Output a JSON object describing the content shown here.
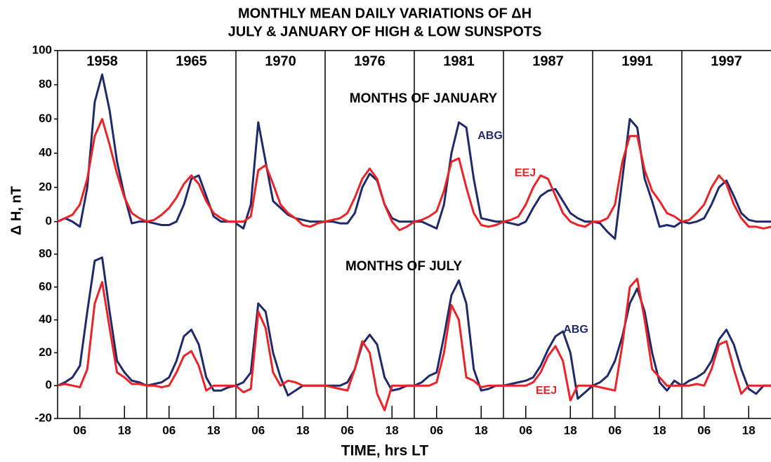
{
  "chart_data": {
    "type": "line",
    "title": "MONTHLY MEAN DAILY VARIATIONS OF ΔH",
    "subtitle": "JULY & JANUARY OF HIGH & LOW SUNSPOTS",
    "y_label": "Δ H, nT",
    "x_label": "TIME, hrs LT",
    "categories": [
      "1958",
      "1965",
      "1970",
      "1976",
      "1981",
      "1987",
      "1991",
      "1997"
    ],
    "x": [
      0,
      2,
      4,
      6,
      8,
      10,
      12,
      14,
      16,
      18,
      20,
      22,
      24
    ],
    "xlim": [
      0,
      24
    ],
    "xticks": [
      {
        "value": 6,
        "label": "06"
      },
      {
        "value": 18,
        "label": "18"
      }
    ],
    "panels": [
      {
        "label": "MONTHS OF JANUARY",
        "ylim": [
          -10,
          100
        ],
        "yticks": [
          0,
          20,
          40,
          60,
          80,
          100
        ],
        "series": [
          {
            "name": "ABG",
            "color": "#1f2a6b",
            "values": [
              [
                0,
                2,
                0,
                -3,
                20,
                70,
                86,
                65,
                35,
                15,
                -1,
                0,
                0
              ],
              [
                0,
                -1,
                -2,
                -2,
                0,
                10,
                25,
                27,
                15,
                3,
                0,
                0,
                0
              ],
              [
                -1,
                -4,
                10,
                58,
                35,
                12,
                8,
                4,
                2,
                1,
                0,
                0,
                0
              ],
              [
                0,
                0,
                -1,
                -1,
                5,
                20,
                28,
                24,
                10,
                2,
                0,
                0,
                0
              ],
              [
                0,
                0,
                -2,
                -4,
                10,
                40,
                58,
                55,
                25,
                2,
                1,
                0,
                0
              ],
              [
                0,
                -1,
                -2,
                0,
                8,
                15,
                18,
                19,
                12,
                5,
                2,
                0,
                0
              ],
              [
                0,
                -1,
                -6,
                -10,
                25,
                60,
                55,
                25,
                12,
                -3,
                -2,
                -3,
                0
              ],
              [
                0,
                -1,
                0,
                2,
                10,
                20,
                24,
                15,
                5,
                1,
                0,
                0,
                0
              ]
            ]
          },
          {
            "name": "EEJ",
            "color": "#ec2227",
            "values": [
              [
                0,
                2,
                4,
                10,
                25,
                50,
                60,
                45,
                28,
                14,
                5,
                2,
                0
              ],
              [
                0,
                1,
                4,
                8,
                14,
                22,
                27,
                22,
                12,
                5,
                2,
                0,
                0
              ],
              [
                0,
                0,
                3,
                30,
                33,
                22,
                10,
                5,
                2,
                -2,
                -3,
                -1,
                0
              ],
              [
                0,
                1,
                2,
                5,
                14,
                25,
                31,
                25,
                10,
                0,
                -5,
                -3,
                0
              ],
              [
                0,
                1,
                3,
                6,
                18,
                35,
                37,
                20,
                5,
                -2,
                -3,
                -2,
                0
              ],
              [
                0,
                1,
                3,
                10,
                20,
                27,
                25,
                15,
                5,
                0,
                -2,
                -3,
                0
              ],
              [
                0,
                0,
                2,
                10,
                35,
                50,
                50,
                30,
                18,
                12,
                5,
                3,
                0
              ],
              [
                0,
                1,
                5,
                10,
                20,
                27,
                22,
                10,
                2,
                -3,
                -3,
                -4,
                -3
              ]
            ]
          }
        ]
      },
      {
        "label": "MONTHS OF JULY",
        "ylim": [
          -20,
          80
        ],
        "yticks": [
          -20,
          0,
          20,
          40,
          60,
          80
        ],
        "series": [
          {
            "name": "ABG",
            "color": "#1f2a6b",
            "values": [
              [
                0,
                2,
                5,
                12,
                45,
                76,
                78,
                45,
                15,
                8,
                3,
                2,
                0
              ],
              [
                0,
                1,
                2,
                5,
                15,
                30,
                34,
                25,
                5,
                -3,
                -3,
                -1,
                0
              ],
              [
                0,
                2,
                8,
                50,
                45,
                20,
                5,
                -6,
                -3,
                0,
                0,
                0,
                0
              ],
              [
                0,
                0,
                0,
                2,
                10,
                25,
                31,
                25,
                5,
                -3,
                -2,
                0,
                0
              ],
              [
                0,
                2,
                6,
                8,
                30,
                55,
                64,
                50,
                10,
                -3,
                -2,
                0,
                0
              ],
              [
                0,
                1,
                2,
                3,
                5,
                12,
                22,
                30,
                33,
                20,
                -8,
                -4,
                0
              ],
              [
                0,
                2,
                6,
                15,
                30,
                50,
                59,
                45,
                20,
                2,
                -3,
                3,
                0
              ],
              [
                0,
                3,
                5,
                8,
                15,
                28,
                34,
                25,
                10,
                -2,
                -5,
                0,
                0
              ]
            ]
          },
          {
            "name": "EEJ",
            "color": "#ec2227",
            "values": [
              [
                0,
                1,
                0,
                -1,
                10,
                50,
                63,
                35,
                8,
                5,
                1,
                1,
                0
              ],
              [
                0,
                0,
                -1,
                0,
                8,
                18,
                21,
                12,
                -3,
                0,
                0,
                0,
                0
              ],
              [
                0,
                -4,
                -2,
                45,
                35,
                8,
                0,
                3,
                2,
                0,
                0,
                0,
                0
              ],
              [
                0,
                -1,
                -2,
                -3,
                10,
                27,
                20,
                -5,
                -15,
                0,
                0,
                0,
                0
              ],
              [
                0,
                0,
                0,
                2,
                20,
                49,
                40,
                5,
                3,
                -1,
                0,
                0,
                0
              ],
              [
                0,
                0,
                0,
                0,
                2,
                8,
                18,
                24,
                15,
                -9,
                0,
                0,
                0
              ],
              [
                0,
                -1,
                -2,
                -3,
                25,
                60,
                65,
                40,
                10,
                5,
                0,
                0,
                0
              ],
              [
                0,
                0,
                1,
                0,
                10,
                25,
                27,
                10,
                -5,
                0,
                0,
                0,
                0
              ]
            ]
          }
        ]
      }
    ]
  }
}
